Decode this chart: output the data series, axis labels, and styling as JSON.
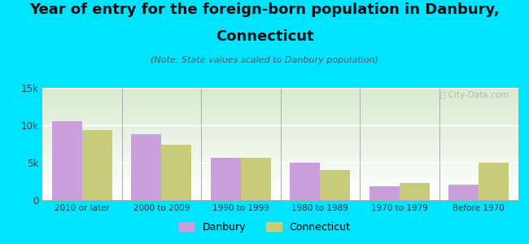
{
  "title_line1": "Year of entry for the foreign-born population in Danbury,",
  "title_line2": "Connecticut",
  "subtitle": "(Note: State values scaled to Danbury population)",
  "categories": [
    "2010 or later",
    "2000 to 2009",
    "1990 to 1999",
    "1980 to 1989",
    "1970 to 1979",
    "Before 1970"
  ],
  "danbury_values": [
    10500,
    8800,
    5700,
    5000,
    1900,
    2100
  ],
  "connecticut_values": [
    9300,
    7400,
    5700,
    4000,
    2300,
    5000
  ],
  "danbury_color": "#c9a0dc",
  "connecticut_color": "#c8cc7a",
  "background_color": "#00e5ff",
  "ylim": [
    0,
    15000
  ],
  "yticks": [
    0,
    5000,
    10000,
    15000
  ],
  "ytick_labels": [
    "0",
    "5k",
    "10k",
    "15k"
  ],
  "bar_width": 0.38,
  "title_fontsize": 13,
  "subtitle_fontsize": 8,
  "legend_danbury": "Danbury",
  "legend_connecticut": "Connecticut",
  "watermark": "ⓘ City-Data.com"
}
